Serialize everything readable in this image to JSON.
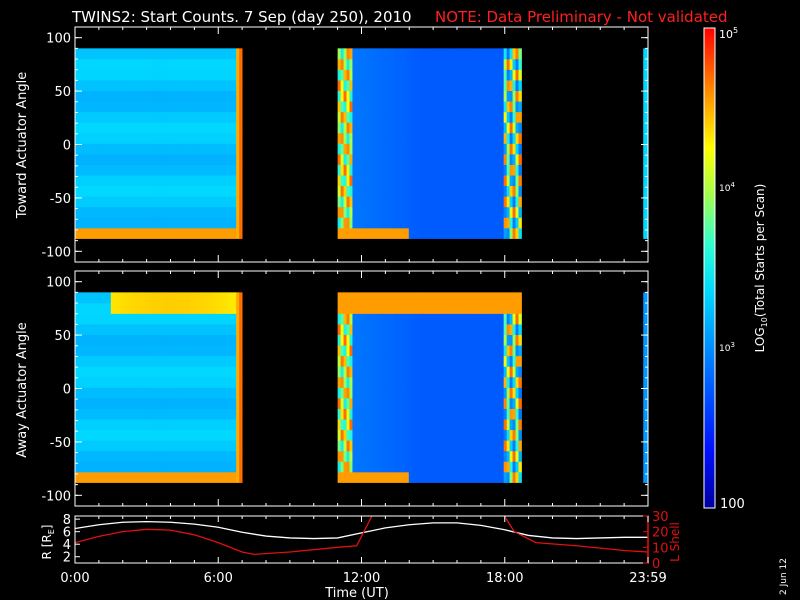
{
  "title": {
    "main": "TWINS2: Start Counts.  7 Sep (day 250), 2010",
    "note": "NOTE: Data Preliminary - Not validated"
  },
  "colors": {
    "background": "#000000",
    "axes": "#ffffff",
    "note": "#ff2020",
    "r_line": "#ffffff",
    "lshell_line": "#e01010"
  },
  "date_stamp": "2 Jun 12",
  "chart_data": [
    {
      "type": "heatmap",
      "ylabel": "Toward Actuator Angle",
      "ylim": [
        -110,
        110
      ],
      "y_ticks": [
        "100",
        "50",
        "0",
        "-50",
        "-100"
      ],
      "data_time_ranges_hours": [
        [
          0.0,
          7.0
        ],
        [
          11.0,
          18.7
        ],
        [
          23.8,
          24.0
        ]
      ],
      "angle_range": [
        -88,
        90
      ],
      "color_scale": "log",
      "value_range": [
        100,
        100000
      ]
    },
    {
      "type": "heatmap",
      "ylabel": "Away Actuator Angle",
      "ylim": [
        -110,
        110
      ],
      "y_ticks": [
        "100",
        "50",
        "0",
        "-50",
        "-100"
      ],
      "data_time_ranges_hours": [
        [
          0.0,
          7.0
        ],
        [
          11.0,
          18.7
        ],
        [
          23.8,
          24.0
        ]
      ],
      "angle_range": [
        -88,
        90
      ],
      "color_scale": "log",
      "value_range": [
        100,
        100000
      ]
    },
    {
      "type": "line",
      "xlabel": "Time (UT)",
      "x_ticks": [
        "0:00",
        "6:00",
        "12:00",
        "18:00",
        "23:59"
      ],
      "xlim": [
        0,
        24
      ],
      "ylabel_left": "R [R",
      "ylabel_left_sub": "E",
      "ylabel_left_close": "]",
      "y_ticks_left": [
        "8",
        "6",
        "4",
        "2"
      ],
      "ylim_left": [
        1,
        8.5
      ],
      "ylabel_right": "L Shell",
      "y_ticks_right": [
        "30",
        "20",
        "10",
        "0"
      ],
      "ylim_right": [
        0,
        30
      ],
      "series": [
        {
          "axis": "left",
          "x": [
            0,
            1,
            2,
            3,
            4,
            5,
            6,
            7,
            8,
            9,
            10,
            11,
            12,
            13,
            14,
            15,
            16,
            17,
            18,
            19,
            20,
            21,
            22,
            23,
            24
          ],
          "y": [
            6.5,
            7.1,
            7.5,
            7.6,
            7.5,
            7.2,
            6.7,
            5.9,
            5.3,
            5.0,
            4.9,
            5.0,
            5.8,
            6.6,
            7.1,
            7.4,
            7.4,
            7.0,
            6.3,
            5.4,
            5.0,
            4.9,
            5.0,
            5.1,
            5.1
          ]
        },
        {
          "axis": "right",
          "x": [
            0,
            1,
            2,
            3,
            4,
            5,
            6,
            7,
            7.5,
            9,
            11,
            11.8,
            12.5,
            17.9,
            18.4,
            19.3,
            21,
            23,
            24
          ],
          "y": [
            13,
            17,
            20,
            21.5,
            21,
            18,
            13,
            7,
            5.5,
            7,
            10,
            11,
            32,
            32,
            20,
            13,
            11,
            8,
            7
          ]
        }
      ]
    }
  ],
  "colorbar": {
    "label_pre": "LOG",
    "label_sub": "10",
    "label_post": "(Total Starts per Scan)",
    "top_label": "10",
    "top_exp": "5",
    "mid_label": "10",
    "mid_exp": "4",
    "low_label": "10",
    "low_exp": "3",
    "bottom_label": "100"
  }
}
